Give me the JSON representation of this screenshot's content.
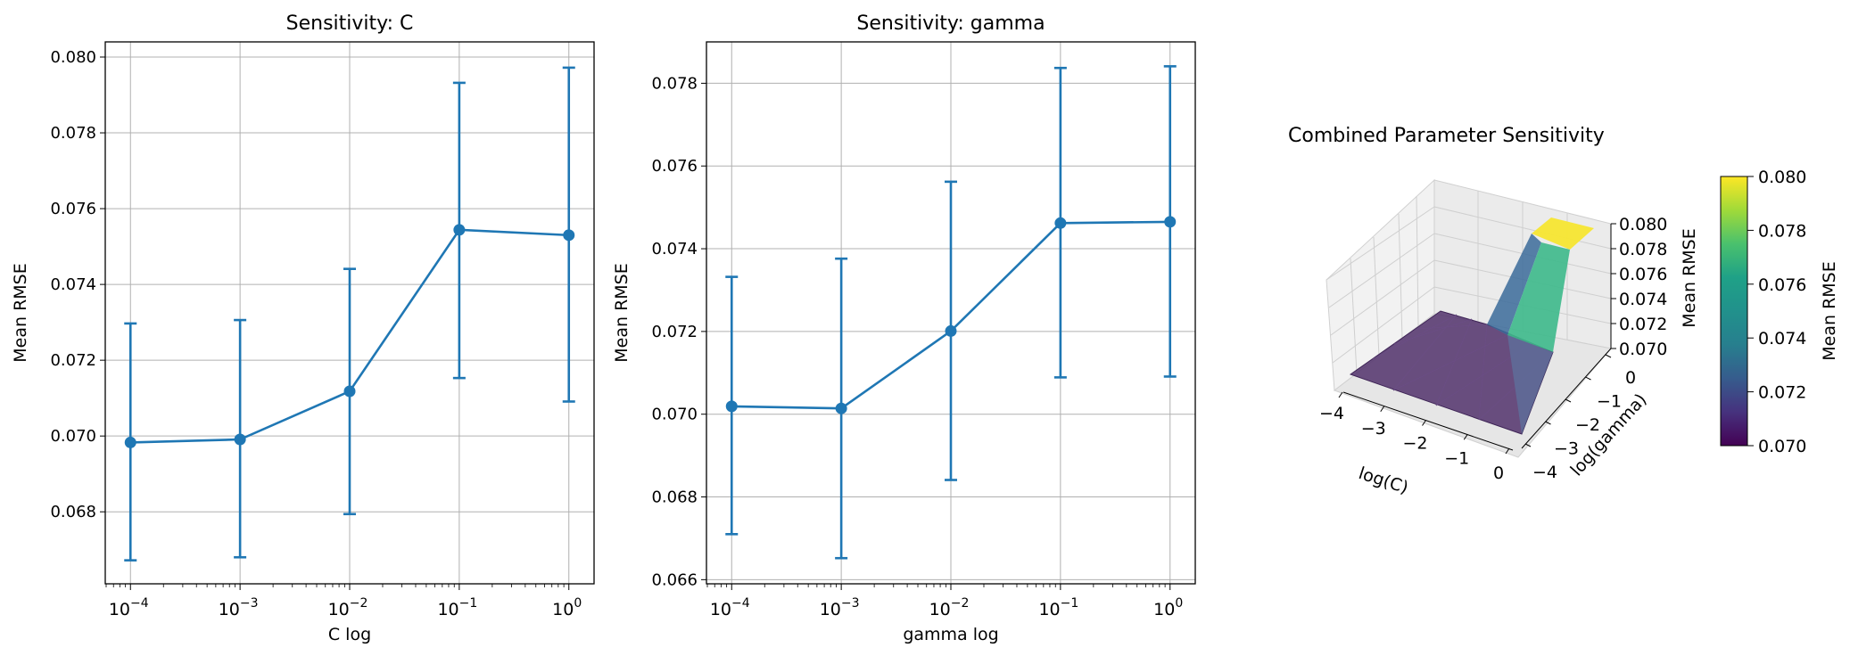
{
  "chart_data": [
    {
      "type": "line",
      "title": "Sensitivity: C",
      "xlabel": "C log",
      "ylabel": "Mean RMSE",
      "x_scale": "log",
      "x": [
        0.0001,
        0.001,
        0.01,
        0.1,
        1
      ],
      "xtick_labels": [
        {
          "base": "10",
          "exp": "−4"
        },
        {
          "base": "10",
          "exp": "−3"
        },
        {
          "base": "10",
          "exp": "−2"
        },
        {
          "base": "10",
          "exp": "−1"
        },
        {
          "base": "10",
          "exp": "0"
        }
      ],
      "series": [
        {
          "values": [
            0.06983,
            0.06991,
            0.07118,
            0.07544,
            0.0753
          ],
          "err_low": [
            0.06672,
            0.0668,
            0.06794,
            0.07153,
            0.07091
          ],
          "err_high": [
            0.07297,
            0.07306,
            0.07441,
            0.07932,
            0.07972
          ],
          "color": "#1f77b4"
        }
      ],
      "ylim": [
        0.0661,
        0.0804
      ],
      "yticks": [
        "0.068",
        "0.070",
        "0.072",
        "0.074",
        "0.076",
        "0.078",
        "0.080"
      ],
      "grid": true
    },
    {
      "type": "line",
      "title": "Sensitivity: gamma",
      "xlabel": "gamma log",
      "ylabel": "Mean RMSE",
      "x_scale": "log",
      "x": [
        0.0001,
        0.001,
        0.01,
        0.1,
        1
      ],
      "xtick_labels": [
        {
          "base": "10",
          "exp": "−4"
        },
        {
          "base": "10",
          "exp": "−3"
        },
        {
          "base": "10",
          "exp": "−2"
        },
        {
          "base": "10",
          "exp": "−1"
        },
        {
          "base": "10",
          "exp": "0"
        }
      ],
      "series": [
        {
          "values": [
            0.07019,
            0.07014,
            0.07201,
            0.07462,
            0.07465
          ],
          "err_low": [
            0.0671,
            0.06652,
            0.06841,
            0.07089,
            0.07091
          ],
          "err_high": [
            0.07332,
            0.07376,
            0.07562,
            0.07837,
            0.07841
          ],
          "color": "#1f77b4"
        }
      ],
      "ylim": [
        0.0659,
        0.079
      ],
      "yticks": [
        "0.066",
        "0.068",
        "0.070",
        "0.072",
        "0.074",
        "0.076",
        "0.078"
      ],
      "grid": true
    },
    {
      "type": "surface",
      "title": "Combined Parameter Sensitivity",
      "xlabel": "log(C)",
      "ylabel": "log(gamma)",
      "zlabel": "Mean RMSE",
      "x": [
        -4,
        -3,
        -2,
        -1,
        0
      ],
      "y": [
        -4,
        -3,
        -2,
        -1,
        0
      ],
      "xticks": [
        "−4",
        "−3",
        "−2",
        "−1",
        "0"
      ],
      "yticks": [
        "−4",
        "−3",
        "−2",
        "−1",
        "0"
      ],
      "zticks": [
        "0.070",
        "0.072",
        "0.074",
        "0.076",
        "0.078",
        "0.080"
      ],
      "z_grid": [
        [
          0.07,
          0.07,
          0.07,
          0.07,
          0.07
        ],
        [
          0.07,
          0.07,
          0.07,
          0.07,
          0.07
        ],
        [
          0.07,
          0.07,
          0.07,
          0.07,
          0.07
        ],
        [
          0.07,
          0.07,
          0.07,
          0.07,
          0.07
        ],
        [
          0.07,
          0.07,
          0.07,
          0.07,
          0.08
        ]
      ],
      "zlim": [
        0.07,
        0.08
      ],
      "colormap": "viridis",
      "colorbar": {
        "label": "Mean RMSE",
        "ticks": [
          "0.070",
          "0.072",
          "0.074",
          "0.076",
          "0.078",
          "0.080"
        ],
        "min": 0.07,
        "max": 0.08
      }
    }
  ]
}
